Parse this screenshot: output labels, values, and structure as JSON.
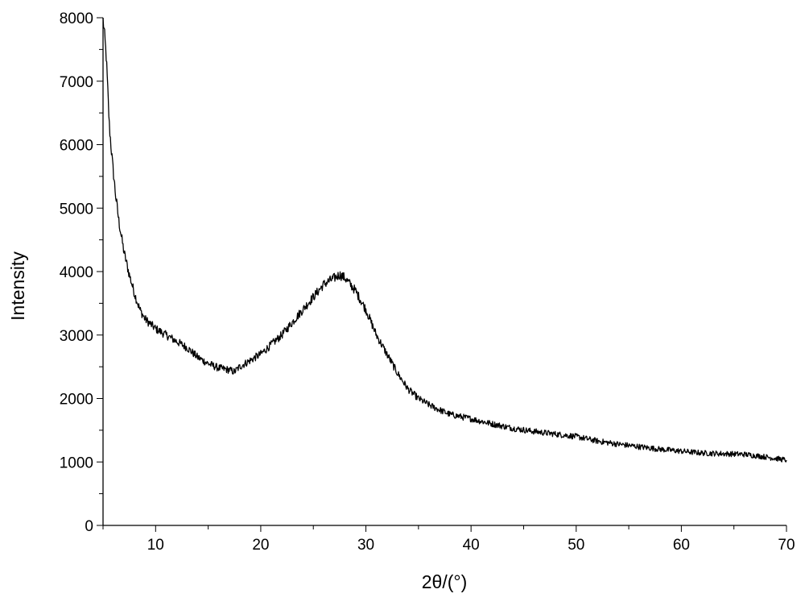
{
  "chart_data": {
    "type": "line",
    "title": "",
    "xlabel": "2θ/(°)",
    "ylabel": "Intensity",
    "xlim": [
      5,
      70
    ],
    "ylim": [
      0,
      8000
    ],
    "xticks": [
      10,
      20,
      30,
      40,
      50,
      60,
      70
    ],
    "yticks": [
      0,
      1000,
      2000,
      3000,
      4000,
      5000,
      6000,
      7000,
      8000
    ],
    "grid": false,
    "legend": "none",
    "line_color": "#000000",
    "series": [
      {
        "x": [
          5.0,
          5.3,
          5.6,
          5.9,
          6.2,
          6.5,
          7.0,
          7.5,
          8.0,
          8.5,
          9.0,
          10.0,
          11.0,
          12.0,
          13.0,
          14.0,
          15.0,
          16.0,
          17.0,
          17.5,
          18.0,
          19.0,
          20.0,
          21.0,
          22.0,
          23.0,
          24.0,
          25.0,
          26.0,
          27.0,
          27.5,
          28.0,
          29.0,
          30.0,
          31.0,
          32.0,
          33.0,
          34.0,
          35.0,
          36.0,
          37.0,
          38.0,
          40.0,
          42.0,
          44.0,
          46.0,
          48.0,
          50.0,
          52.0,
          54.0,
          56.0,
          58.0,
          60.0,
          62.0,
          64.0,
          66.0,
          68.0,
          70.0
        ],
        "y": [
          8000,
          7400,
          6300,
          5700,
          5200,
          4800,
          4300,
          3950,
          3650,
          3400,
          3250,
          3100,
          3000,
          2900,
          2800,
          2650,
          2550,
          2480,
          2450,
          2420,
          2500,
          2600,
          2700,
          2850,
          3000,
          3200,
          3400,
          3600,
          3800,
          3900,
          3950,
          3900,
          3700,
          3400,
          3000,
          2700,
          2400,
          2150,
          2000,
          1900,
          1820,
          1750,
          1680,
          1600,
          1530,
          1480,
          1440,
          1400,
          1330,
          1280,
          1240,
          1200,
          1170,
          1140,
          1130,
          1120,
          1080,
          1030
        ]
      }
    ]
  }
}
